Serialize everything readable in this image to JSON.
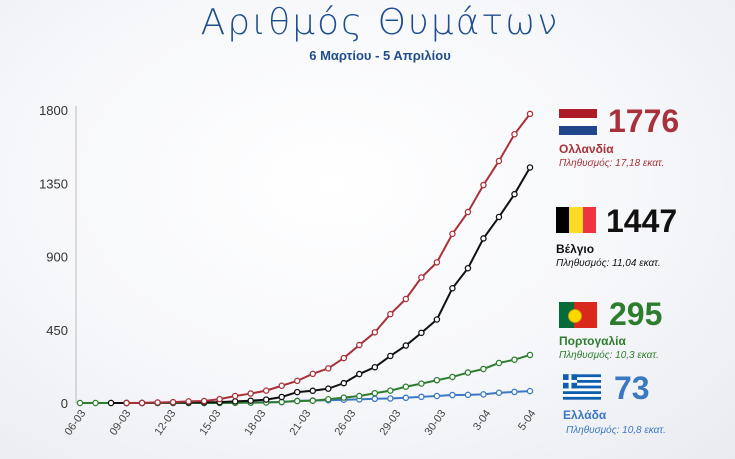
{
  "title": "Αριθμός Θυμάτων",
  "subtitle": "6 Μαρτίου - 5 Απριλίου",
  "colors": {
    "netherlands": "#a8323a",
    "belgium": "#111111",
    "portugal": "#2e7d2e",
    "greece": "#3a78c2",
    "title": "#1f4e8c"
  },
  "chart_data": {
    "type": "line",
    "ylim": [
      0,
      1800
    ],
    "yticks": [
      "0",
      "450",
      "900",
      "1350",
      "1800"
    ],
    "ytick_values": [
      0,
      450,
      900,
      1350,
      1800
    ],
    "xlabels": [
      "06-03",
      "09-03",
      "12-03",
      "15-03",
      "18-03",
      "21-03",
      "26-03",
      "29-03",
      "30-03",
      "3-04",
      "5-04"
    ],
    "xlabel_index": [
      0,
      2,
      4,
      6,
      8,
      10,
      12,
      14,
      16,
      18,
      20
    ],
    "grid": false,
    "legend": "right",
    "series": [
      {
        "key": "netherlands",
        "name": "Ολλανδία",
        "final_value": "1776",
        "population": "Πληθυσμός: 17,18 εκατ.",
        "values": [
          0,
          1,
          3,
          5,
          10,
          12,
          24,
          43,
          58,
          76,
          106,
          136,
          179,
          213,
          276,
          356,
          434,
          546,
          639,
          771,
          864,
          1039,
          1173,
          1339,
          1487,
          1651,
          1776
        ]
      },
      {
        "key": "belgium",
        "name": "Βέλγιο",
        "final_value": "1447",
        "population": "Πληθυσμός: 11,04 εκατ.",
        "values": [
          0,
          0,
          0,
          2,
          3,
          4,
          4,
          5,
          10,
          14,
          21,
          37,
          67,
          75,
          88,
          122,
          178,
          220,
          289,
          353,
          431,
          513,
          705,
          828,
          1011,
          1143,
          1283,
          1447
        ]
      },
      {
        "key": "portugal",
        "name": "Πορτογαλία",
        "final_value": "295",
        "population": "Πληθυσμός: 10,3 εκατ.",
        "values": [
          0,
          0,
          0,
          0,
          0,
          0,
          0,
          0,
          0,
          0,
          1,
          2,
          3,
          6,
          12,
          14,
          23,
          33,
          43,
          60,
          76,
          100,
          119,
          140,
          160,
          187,
          209,
          246,
          266,
          295
        ]
      },
      {
        "key": "greece",
        "name": "Ελλάδα",
        "final_value": "73",
        "population": "Πληθυσμός: 10,8 εκατ.",
        "values": [
          0,
          0,
          0,
          0,
          0,
          0,
          1,
          3,
          4,
          5,
          6,
          13,
          15,
          17,
          20,
          22,
          26,
          28,
          32,
          38,
          43,
          49,
          50,
          53,
          63,
          68,
          73
        ]
      }
    ]
  }
}
